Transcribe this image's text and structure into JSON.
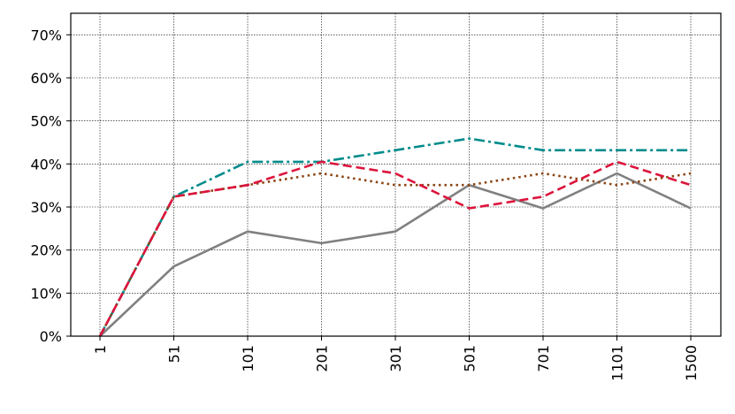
{
  "chart_data": {
    "type": "line",
    "title": "",
    "xlabel": "",
    "ylabel": "",
    "categories": [
      "1",
      "51",
      "101",
      "201",
      "301",
      "501",
      "701",
      "1101",
      "1500"
    ],
    "y_tick_labels": [
      "0%",
      "10%",
      "20%",
      "30%",
      "40%",
      "50%",
      "60%",
      "70%"
    ],
    "ylim": [
      0,
      75
    ],
    "grid": true,
    "legend": "none",
    "series": [
      {
        "color": "#808080",
        "dash": "solid",
        "values": [
          0,
          16.2,
          24.3,
          21.6,
          24.3,
          35.1,
          29.7,
          37.8,
          29.7
        ]
      },
      {
        "color": "#008b8b",
        "dash": "dashdot",
        "values": [
          0,
          32.4,
          40.5,
          40.5,
          43.2,
          45.9,
          43.2,
          43.2,
          43.2
        ]
      },
      {
        "color": "#8b4513",
        "dash": "dotted",
        "values": [
          0,
          32.4,
          35.1,
          37.8,
          35.1,
          35.1,
          37.8,
          35.1,
          37.8
        ]
      },
      {
        "color": "#dc143c",
        "dash": "dashed",
        "values": [
          0,
          32.4,
          35.1,
          40.5,
          37.8,
          29.7,
          32.4,
          40.5,
          35.1
        ]
      }
    ]
  }
}
